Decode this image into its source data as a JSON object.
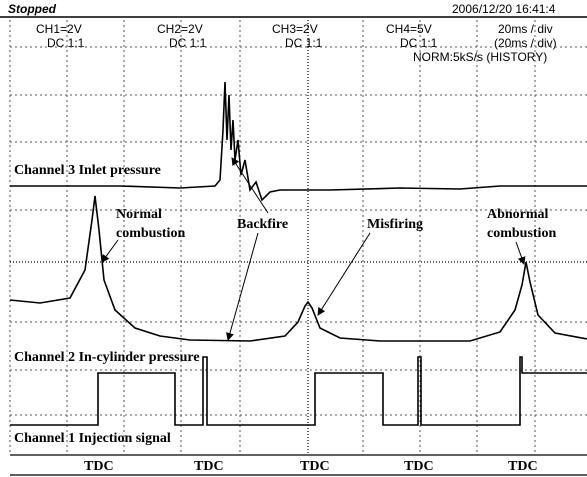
{
  "header": {
    "status": "Stopped",
    "timestamp": "2006/12/20 16:41:4"
  },
  "channels": [
    {
      "scale": "CH1=2V",
      "coupling": "DC 1:1"
    },
    {
      "scale": "CH2=2V",
      "coupling": "DC 1:1"
    },
    {
      "scale": "CH3=2V",
      "coupling": "DC 1:1"
    },
    {
      "scale": "CH4=5V",
      "coupling": "DC 1:1"
    }
  ],
  "timebase": {
    "main": "20ms / div",
    "history": "(20ms / div)",
    "mode": "NORM:5kS/s (HISTORY)"
  },
  "annotations": {
    "channel3": "Channel 3 Inlet pressure",
    "normal": [
      "Normal",
      "combustion"
    ],
    "backfire": "Backfire",
    "misfiring": "Misfiring",
    "abnormal": [
      "Abnormal",
      "combustion"
    ],
    "channel2": "Channel 2 In-cylinder pressure",
    "channel1": "Channel 1 Injection signal"
  },
  "tdc_labels": [
    "TDC",
    "TDC",
    "TDC",
    "TDC",
    "TDC"
  ]
}
